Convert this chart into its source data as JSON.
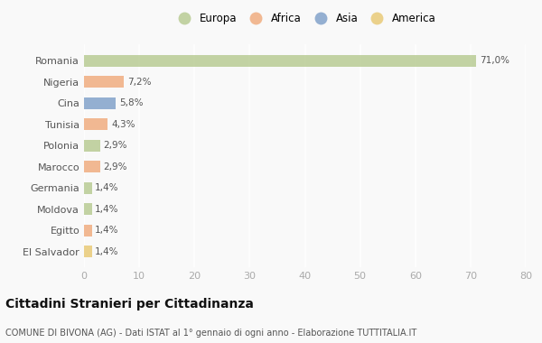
{
  "categories": [
    "Romania",
    "Nigeria",
    "Cina",
    "Tunisia",
    "Polonia",
    "Marocco",
    "Germania",
    "Moldova",
    "Egitto",
    "El Salvador"
  ],
  "values": [
    71.0,
    7.2,
    5.8,
    4.3,
    2.9,
    2.9,
    1.4,
    1.4,
    1.4,
    1.4
  ],
  "labels": [
    "71,0%",
    "7,2%",
    "5,8%",
    "4,3%",
    "2,9%",
    "2,9%",
    "1,4%",
    "1,4%",
    "1,4%",
    "1,4%"
  ],
  "colors": [
    "#b5c98e",
    "#f0a878",
    "#7b9dc8",
    "#f0a878",
    "#b5c98e",
    "#f0a878",
    "#b5c98e",
    "#b5c98e",
    "#f0a878",
    "#e8c870"
  ],
  "legend_labels": [
    "Europa",
    "Africa",
    "Asia",
    "America"
  ],
  "legend_colors": [
    "#b5c98e",
    "#f0a878",
    "#7b9dc8",
    "#e8c870"
  ],
  "title": "Cittadini Stranieri per Cittadinanza",
  "subtitle": "COMUNE DI BIVONA (AG) - Dati ISTAT al 1° gennaio di ogni anno - Elaborazione TUTTITALIA.IT",
  "xlim": [
    0,
    80
  ],
  "xticks": [
    0,
    10,
    20,
    30,
    40,
    50,
    60,
    70,
    80
  ],
  "background_color": "#f9f9f9",
  "grid_color": "#ffffff",
  "bar_alpha": 0.8
}
